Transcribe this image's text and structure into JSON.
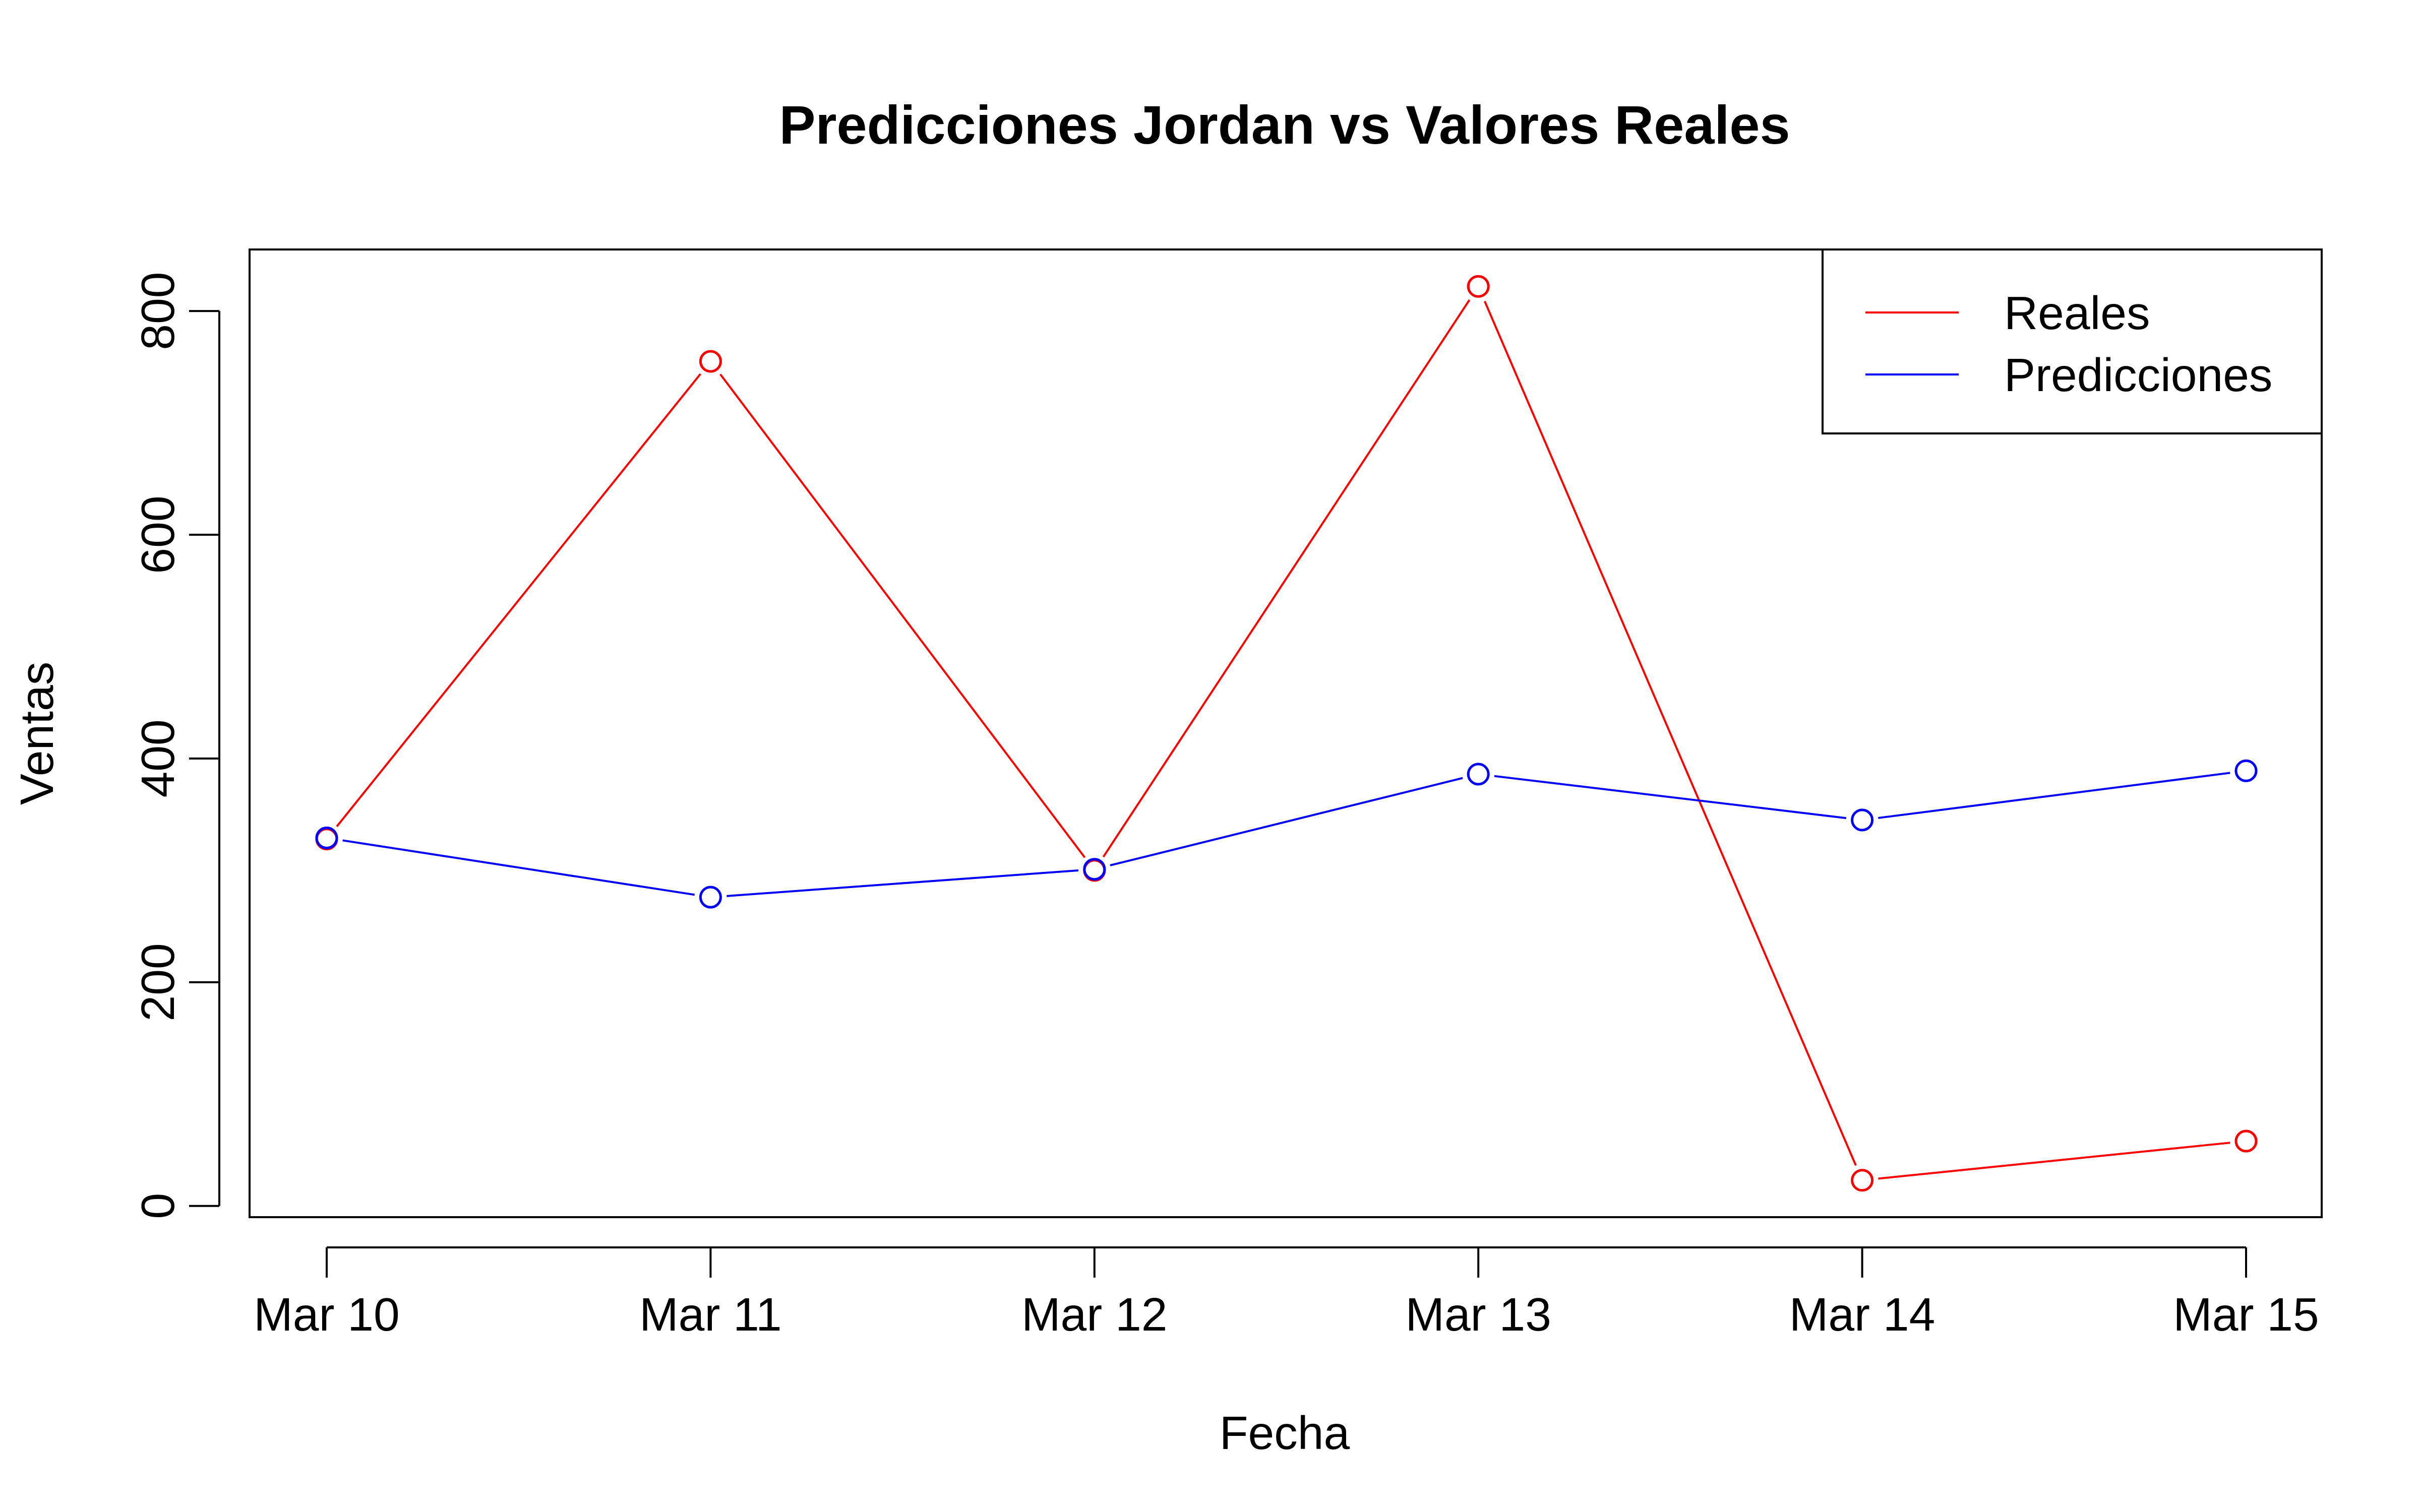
{
  "chart_data": {
    "type": "line",
    "title": "Predicciones Jordan vs Valores Reales",
    "xlabel": "Fecha",
    "ylabel": "Ventas",
    "categories": [
      "Mar 10",
      "Mar 11",
      "Mar 12",
      "Mar 13",
      "Mar 14",
      "Mar 15"
    ],
    "yticks": [
      "0",
      "200",
      "400",
      "600",
      "800"
    ],
    "ylim": [
      -10,
      855
    ],
    "grid": false,
    "legend_position": "top-right",
    "series": [
      {
        "name": "Reales",
        "color": "#ff0000",
        "values": [
          328,
          755,
          300,
          822,
          23,
          58
        ]
      },
      {
        "name": "Predicciones",
        "color": "#0000ff",
        "values": [
          329,
          276,
          301,
          386,
          345,
          389
        ]
      }
    ]
  }
}
